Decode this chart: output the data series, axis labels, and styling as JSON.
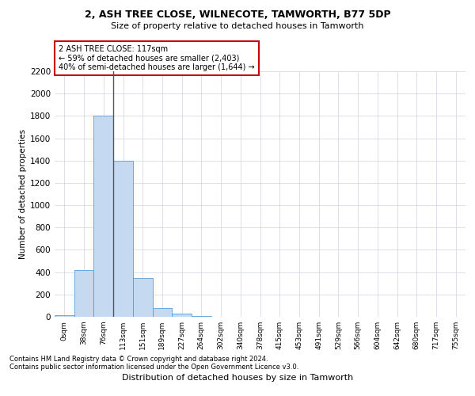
{
  "title1": "2, ASH TREE CLOSE, WILNECOTE, TAMWORTH, B77 5DP",
  "title2": "Size of property relative to detached houses in Tamworth",
  "xlabel": "Distribution of detached houses by size in Tamworth",
  "ylabel": "Number of detached properties",
  "bar_labels": [
    "0sqm",
    "38sqm",
    "76sqm",
    "113sqm",
    "151sqm",
    "189sqm",
    "227sqm",
    "264sqm",
    "302sqm",
    "340sqm",
    "378sqm",
    "415sqm",
    "453sqm",
    "491sqm",
    "529sqm",
    "566sqm",
    "604sqm",
    "642sqm",
    "680sqm",
    "717sqm",
    "755sqm"
  ],
  "bar_values": [
    15,
    420,
    1800,
    1400,
    350,
    80,
    25,
    5,
    0,
    0,
    0,
    0,
    0,
    0,
    0,
    0,
    0,
    0,
    0,
    0,
    0
  ],
  "bar_color": "#c5d9f0",
  "bar_edge_color": "#5b9bd5",
  "vline_x": 2.5,
  "vline_color": "#555555",
  "annotation_text": "2 ASH TREE CLOSE: 117sqm\n← 59% of detached houses are smaller (2,403)\n40% of semi-detached houses are larger (1,644) →",
  "annotation_box_color": "#ffffff",
  "annotation_border_color": "#cc0000",
  "ylim": [
    0,
    2200
  ],
  "yticks": [
    0,
    200,
    400,
    600,
    800,
    1000,
    1200,
    1400,
    1600,
    1800,
    2000,
    2200
  ],
  "bg_color": "#ffffff",
  "grid_color": "#cdd5e0",
  "footnote1": "Contains HM Land Registry data © Crown copyright and database right 2024.",
  "footnote2": "Contains public sector information licensed under the Open Government Licence v3.0."
}
